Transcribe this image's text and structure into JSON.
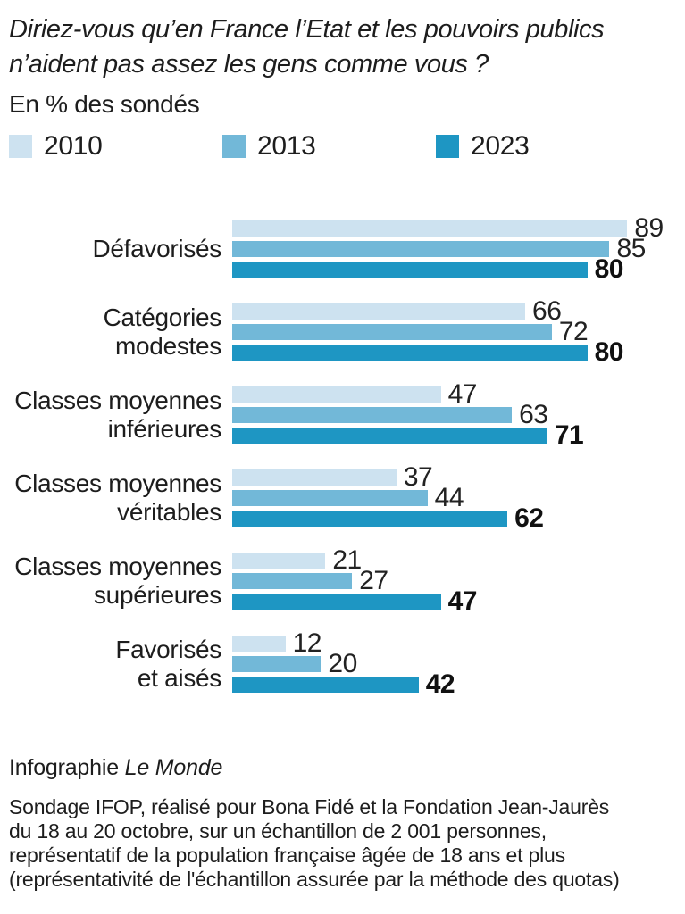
{
  "title": "Diriez-vous qu’en France l’Etat et les pouvoirs publics\nn’aident pas assez les gens comme vous ?",
  "subtitle": "En % des sondés",
  "colors": {
    "bar_2010": "#cde2f0",
    "bar_2013": "#72b8d8",
    "bar_2023": "#1e96c3",
    "text": "#1d1d1d"
  },
  "chart_data": {
    "type": "bar",
    "orientation": "horizontal",
    "title": "Diriez-vous qu’en France l’Etat et les pouvoirs publics n’aident pas assez les gens comme vous ?",
    "subtitle": "En % des sondés",
    "value_unit": "% des sondés",
    "xlim": [
      0,
      100
    ],
    "grid": false,
    "legend_position": "top",
    "value_labels": true,
    "categories": [
      "Défavorisés",
      "Catégories modestes",
      "Classes moyennes inférieures",
      "Classes moyennes véritables",
      "Classes moyennes supérieures",
      "Favorisés et aisés"
    ],
    "category_display": [
      "Défavorisés",
      "Catégories\nmodestes",
      "Classes moyennes\ninférieures",
      "Classes moyennes\nvéritables",
      "Classes moyennes\nsupérieures",
      "Favorisés\net aisés"
    ],
    "series": [
      {
        "name": "2010",
        "color": "#cde2f0",
        "values": [
          89,
          66,
          47,
          37,
          21,
          12
        ]
      },
      {
        "name": "2013",
        "color": "#72b8d8",
        "values": [
          85,
          72,
          63,
          44,
          27,
          20
        ]
      },
      {
        "name": "2023",
        "color": "#1e96c3",
        "values": [
          80,
          80,
          71,
          62,
          47,
          42
        ],
        "emphasized": true
      }
    ]
  },
  "footer": {
    "credit_prefix": "Infographie ",
    "credit_brand": "Le Monde",
    "source": "Sondage IFOP, réalisé pour Bona Fidé et la Fondation Jean-Jaurès\ndu 18 au 20 octobre, sur un échantillon de 2 001 personnes,\nreprésentatif de la population française âgée de 18 ans et plus\n(représentativité de l'échantillon assurée par la méthode des quotas)"
  }
}
